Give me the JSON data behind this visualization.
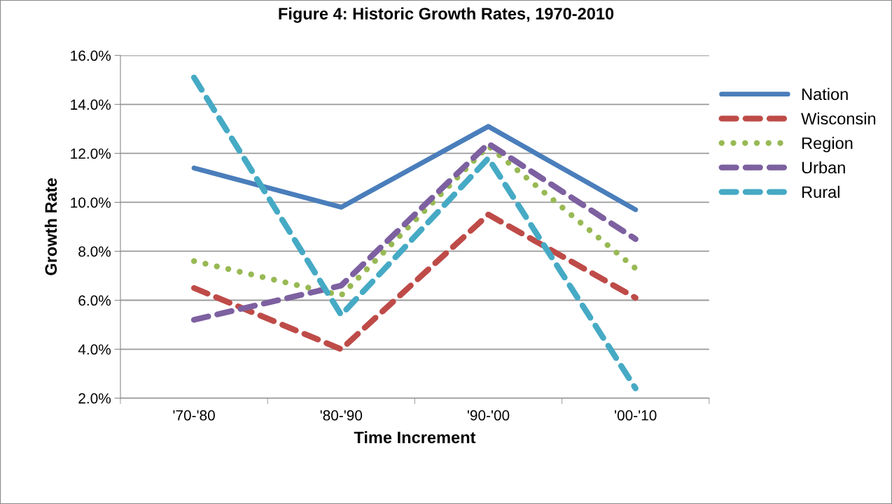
{
  "chart_data": {
    "type": "line",
    "title": "Figure 4: Historic Growth Rates, 1970-2010",
    "xlabel": "Time Increment",
    "ylabel": "Growth Rate",
    "categories": [
      "'70-'80",
      "'80-'90",
      "'90-'00",
      "'00-'10"
    ],
    "series": [
      {
        "name": "Nation",
        "color": "#4a7ebb",
        "values": [
          11.4,
          9.8,
          13.1,
          9.7
        ],
        "line_style": "solid"
      },
      {
        "name": "Wisconsin",
        "color": "#be4b48",
        "values": [
          6.5,
          4.0,
          9.5,
          6.1
        ],
        "line_style": "dashed"
      },
      {
        "name": "Region",
        "color": "#98b954",
        "values": [
          7.6,
          6.2,
          12.3,
          7.3
        ],
        "line_style": "dotted"
      },
      {
        "name": "Urban",
        "color": "#7d60a0",
        "values": [
          5.2,
          6.6,
          12.4,
          8.5
        ],
        "line_style": "dashed"
      },
      {
        "name": "Rural",
        "color": "#46aac5",
        "values": [
          15.1,
          5.4,
          11.8,
          2.4
        ],
        "line_style": "dashed"
      }
    ],
    "ylim": [
      2,
      16
    ],
    "yticks": [
      {
        "value": 2,
        "label": "2.0%"
      },
      {
        "value": 4,
        "label": "4.0%"
      },
      {
        "value": 6,
        "label": "6.0%"
      },
      {
        "value": 8,
        "label": "8.0%"
      },
      {
        "value": 10,
        "label": "10.0%"
      },
      {
        "value": 12,
        "label": "12.0%"
      },
      {
        "value": 14,
        "label": "14.0%"
      },
      {
        "value": 16,
        "label": "16.0%"
      }
    ],
    "grid": "y",
    "legend": "right",
    "marker": "none"
  }
}
